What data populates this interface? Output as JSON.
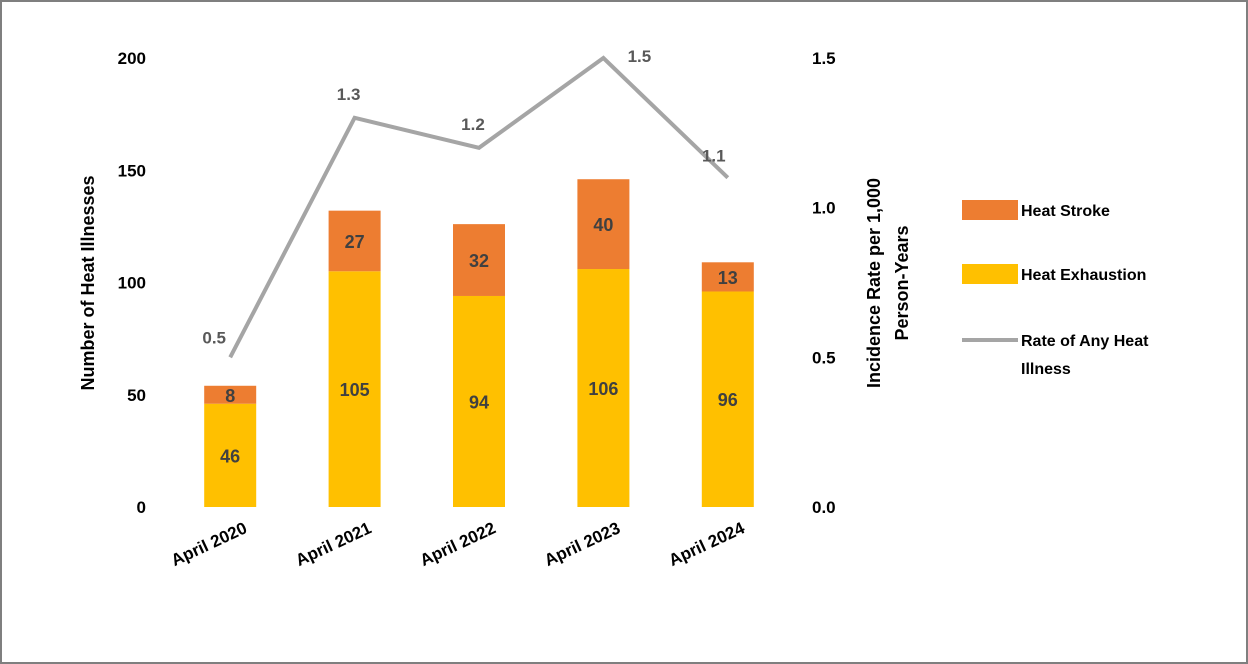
{
  "chart_data": {
    "type": "bar",
    "categories": [
      "April 2020",
      "April 2021",
      "April 2022",
      "April 2023",
      "April 2024"
    ],
    "series": [
      {
        "name": "Heat Exhaustion",
        "kind": "stacked-bar",
        "axis": "left",
        "color": "#FFC000",
        "values": [
          46,
          105,
          94,
          106,
          96
        ]
      },
      {
        "name": "Heat Stroke",
        "kind": "stacked-bar",
        "axis": "left",
        "color": "#ED7D31",
        "values": [
          8,
          27,
          32,
          40,
          13
        ]
      },
      {
        "name": "Rate of Any Heat Illness",
        "kind": "line",
        "axis": "right",
        "color": "#A5A5A5",
        "values": [
          0.5,
          1.3,
          1.2,
          1.5,
          1.1
        ]
      }
    ],
    "left_axis": {
      "label": "Number of Heat Illnesses",
      "min": 0,
      "max": 200,
      "ticks": [
        0,
        50,
        100,
        150,
        200
      ],
      "tick_labels": [
        "0",
        "50",
        "100",
        "150",
        "200"
      ]
    },
    "right_axis": {
      "label_line1": "Incidence Rate per 1,000",
      "label_line2": "Person-Years",
      "min": 0,
      "max": 1.5,
      "ticks": [
        0,
        0.5,
        1.0,
        1.5
      ],
      "tick_labels": [
        "0.0",
        "0.5",
        "1.0",
        "1.5"
      ]
    },
    "legend": {
      "position": "right",
      "entries": [
        {
          "label": "Heat Stroke",
          "color": "#ED7D31",
          "marker": "box"
        },
        {
          "label": "Heat Exhaustion",
          "color": "#FFC000",
          "marker": "box"
        },
        {
          "label_line1": "Rate of Any Heat",
          "label_line2": "Illness",
          "color": "#A5A5A5",
          "marker": "line"
        }
      ]
    },
    "grid": false
  }
}
